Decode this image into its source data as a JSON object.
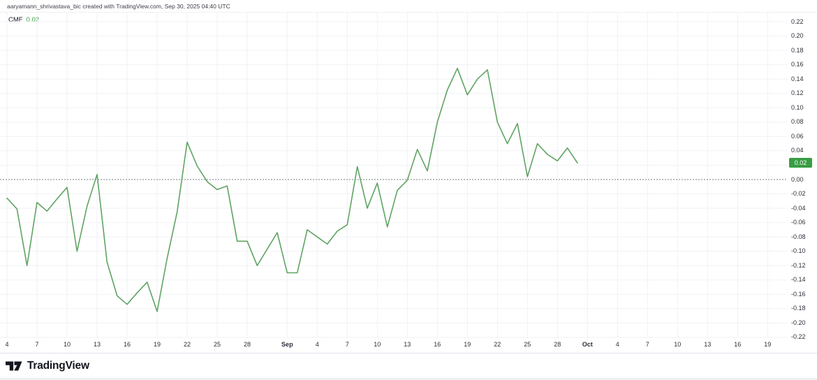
{
  "header": {
    "attribution": "aaryamann_shrivastava_bic created with TradingView.com, Sep 30, 2025 04:40 UTC"
  },
  "legend": {
    "indicator": "CMF",
    "value": "0.02"
  },
  "footer": {
    "brand": "TradingView",
    "logo_icon": "tradingview-17-mark"
  },
  "colors": {
    "line": "#5fa463",
    "value_text": "#389d43",
    "badge_bg": "#389d43",
    "badge_text": "#ffffff",
    "grid": "#f0f2f6",
    "zero_line": "#787b86",
    "axis_text": "#2a2e39"
  },
  "chart_data": {
    "type": "line",
    "title": "CMF",
    "series_name": "CMF",
    "last_value_label": "0.02",
    "grid": true,
    "legend_position": "top-left",
    "ylim": [
      -0.22,
      0.22
    ],
    "y_tick_step": 0.02,
    "y_ticks": [
      "0.22",
      "0.20",
      "0.18",
      "0.16",
      "0.14",
      "0.12",
      "0.10",
      "0.08",
      "0.06",
      "0.04",
      "0.02",
      "0.00",
      "-0.02",
      "-0.04",
      "-0.06",
      "-0.08",
      "-0.10",
      "-0.12",
      "-0.14",
      "-0.16",
      "-0.18",
      "-0.20",
      "-0.22"
    ],
    "zero_line_dashed": true,
    "x_ticks": [
      {
        "label": "4",
        "i": 0,
        "month": false
      },
      {
        "label": "7",
        "i": 3,
        "month": false
      },
      {
        "label": "10",
        "i": 6,
        "month": false
      },
      {
        "label": "13",
        "i": 9,
        "month": false
      },
      {
        "label": "16",
        "i": 12,
        "month": false
      },
      {
        "label": "19",
        "i": 15,
        "month": false
      },
      {
        "label": "22",
        "i": 18,
        "month": false
      },
      {
        "label": "25",
        "i": 21,
        "month": false
      },
      {
        "label": "28",
        "i": 24,
        "month": false
      },
      {
        "label": "Sep",
        "i": 28,
        "month": true
      },
      {
        "label": "4",
        "i": 31,
        "month": false
      },
      {
        "label": "7",
        "i": 34,
        "month": false
      },
      {
        "label": "10",
        "i": 37,
        "month": false
      },
      {
        "label": "13",
        "i": 40,
        "month": false
      },
      {
        "label": "16",
        "i": 43,
        "month": false
      },
      {
        "label": "19",
        "i": 46,
        "month": false
      },
      {
        "label": "22",
        "i": 49,
        "month": false
      },
      {
        "label": "25",
        "i": 52,
        "month": false
      },
      {
        "label": "28",
        "i": 55,
        "month": false
      },
      {
        "label": "Oct",
        "i": 58,
        "month": true
      },
      {
        "label": "4",
        "i": 61,
        "month": false
      },
      {
        "label": "7",
        "i": 64,
        "month": false
      },
      {
        "label": "10",
        "i": 67,
        "month": false
      },
      {
        "label": "13",
        "i": 70,
        "month": false
      },
      {
        "label": "16",
        "i": 73,
        "month": false
      },
      {
        "label": "19",
        "i": 76,
        "month": false
      }
    ],
    "dates": [
      "Aug 4",
      "Aug 5",
      "Aug 6",
      "Aug 7",
      "Aug 8",
      "Aug 9",
      "Aug 10",
      "Aug 11",
      "Aug 12",
      "Aug 13",
      "Aug 14",
      "Aug 15",
      "Aug 16",
      "Aug 17",
      "Aug 18",
      "Aug 19",
      "Aug 20",
      "Aug 21",
      "Aug 22",
      "Aug 23",
      "Aug 24",
      "Aug 25",
      "Aug 26",
      "Aug 27",
      "Aug 28",
      "Aug 29",
      "Aug 30",
      "Aug 31",
      "Sep 1",
      "Sep 2",
      "Sep 3",
      "Sep 4",
      "Sep 5",
      "Sep 6",
      "Sep 7",
      "Sep 8",
      "Sep 9",
      "Sep 10",
      "Sep 11",
      "Sep 12",
      "Sep 13",
      "Sep 14",
      "Sep 15",
      "Sep 16",
      "Sep 17",
      "Sep 18",
      "Sep 19",
      "Sep 20",
      "Sep 21",
      "Sep 22",
      "Sep 23",
      "Sep 24",
      "Sep 25",
      "Sep 26",
      "Sep 27",
      "Sep 28",
      "Sep 29",
      "Sep 30"
    ],
    "values": [
      -0.026,
      -0.041,
      -0.12,
      -0.032,
      -0.044,
      -0.027,
      -0.011,
      -0.1,
      -0.037,
      0.007,
      -0.115,
      -0.162,
      -0.174,
      -0.158,
      -0.143,
      -0.184,
      -0.11,
      -0.045,
      0.052,
      0.019,
      -0.003,
      -0.014,
      -0.009,
      -0.086,
      -0.086,
      -0.12,
      -0.097,
      -0.074,
      -0.13,
      -0.13,
      -0.07,
      -0.08,
      -0.09,
      -0.072,
      -0.063,
      0.018,
      -0.04,
      -0.005,
      -0.066,
      -0.015,
      -0.001,
      0.042,
      0.012,
      0.08,
      0.125,
      0.155,
      0.118,
      0.14,
      0.153,
      0.08,
      0.05,
      0.078,
      0.004,
      0.05,
      0.035,
      0.026,
      0.044,
      0.023
    ]
  }
}
